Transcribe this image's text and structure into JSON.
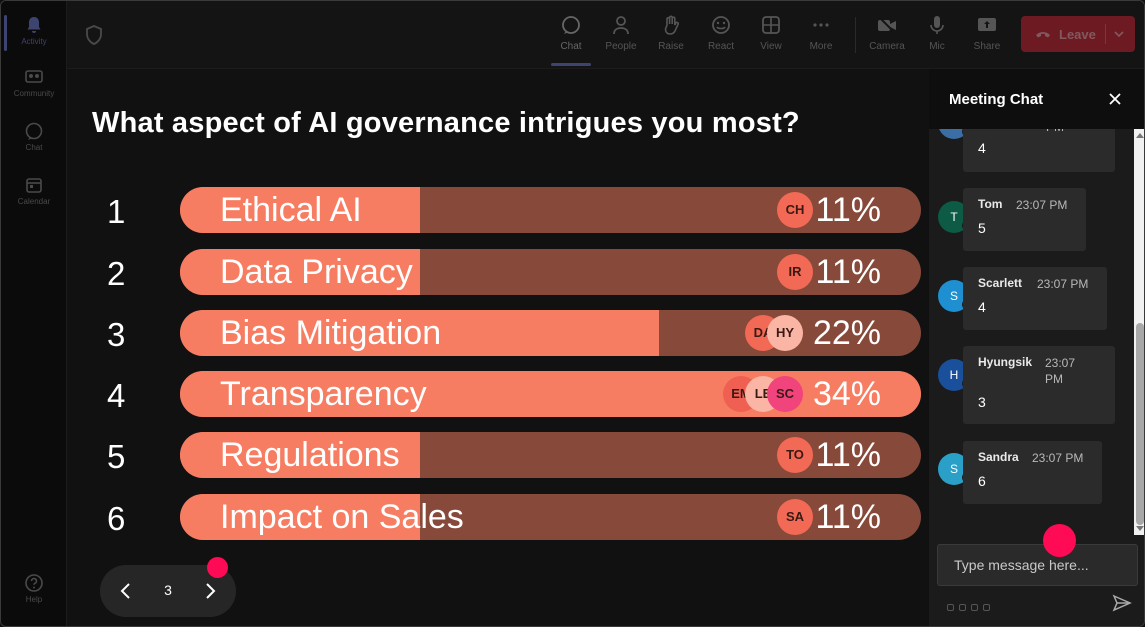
{
  "rail": {
    "items": [
      {
        "label": "Activity",
        "icon": "bell-icon"
      },
      {
        "label": "Community",
        "icon": "community-icon"
      },
      {
        "label": "Chat",
        "icon": "chat-icon"
      },
      {
        "label": "Calendar",
        "icon": "calendar-icon"
      },
      {
        "label": "Help",
        "icon": "help-icon"
      }
    ]
  },
  "toolbar": {
    "chat": "Chat",
    "people": "People",
    "raise": "Raise",
    "react": "React",
    "view": "View",
    "more": "More",
    "camera": "Camera",
    "mic": "Mic",
    "share": "Share",
    "leave": "Leave"
  },
  "poll": {
    "question": "What aspect of AI governance intrigues you most?",
    "options": [
      {
        "num": "1",
        "label": "Ethical AI",
        "percent": "11%",
        "fraction": 0.11,
        "voters": [
          "CH"
        ]
      },
      {
        "num": "2",
        "label": "Data Privacy",
        "percent": "11%",
        "fraction": 0.11,
        "voters": [
          "IR"
        ]
      },
      {
        "num": "3",
        "label": "Bias Mitigation",
        "percent": "22%",
        "fraction": 0.22,
        "voters": [
          "DA",
          "HY"
        ]
      },
      {
        "num": "4",
        "label": "Transparency",
        "percent": "34%",
        "fraction": 0.34,
        "voters": [
          "EM",
          "LE",
          "SC"
        ]
      },
      {
        "num": "5",
        "label": "Regulations",
        "percent": "11%",
        "fraction": 0.11,
        "voters": [
          "TO"
        ]
      },
      {
        "num": "6",
        "label": "Impact on Sales",
        "percent": "11%",
        "fraction": 0.11,
        "voters": [
          "SA"
        ]
      }
    ],
    "page": "3"
  },
  "colors": {
    "bar_fill": "#f77d62",
    "bar_track": "#874a3a",
    "leave_button": "#6e1a22",
    "highlight_dot": "#ff0a55"
  },
  "chat": {
    "title": "Meeting Chat",
    "partial_time": "PM",
    "messages": [
      {
        "initial": "",
        "sender": "",
        "time": "",
        "text": "4"
      },
      {
        "initial": "T",
        "sender": "Tom",
        "time": "23:07 PM",
        "text": "5"
      },
      {
        "initial": "S",
        "sender": "Scarlett",
        "time": "23:07 PM",
        "text": "4"
      },
      {
        "initial": "H",
        "sender": "Hyungsik",
        "time": "23:07 PM",
        "text": "3"
      },
      {
        "initial": "S",
        "sender": "Sandra",
        "time": "23:07 PM",
        "text": "6"
      }
    ],
    "input_placeholder": "Type message here..."
  }
}
